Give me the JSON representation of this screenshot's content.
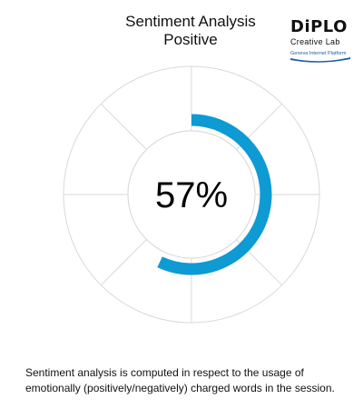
{
  "header": {
    "title_line1": "Sentiment Analysis",
    "title_line2": "Positive"
  },
  "logo": {
    "name": "DIPLO",
    "subtitle": "Creative Lab",
    "tagline": "Geneva Internet Platform",
    "accent": "#1f5fa8"
  },
  "chart_data": {
    "type": "radial-progress",
    "value": 57,
    "max": 100,
    "display": "57%",
    "color": "#0e9ad3",
    "grid": true,
    "grid_color": "#d9d9d9"
  },
  "footer": {
    "line1": "Sentiment analysis is computed in respect to the usage of",
    "line2": "emotionally (positively/negatively) charged words in the session."
  }
}
